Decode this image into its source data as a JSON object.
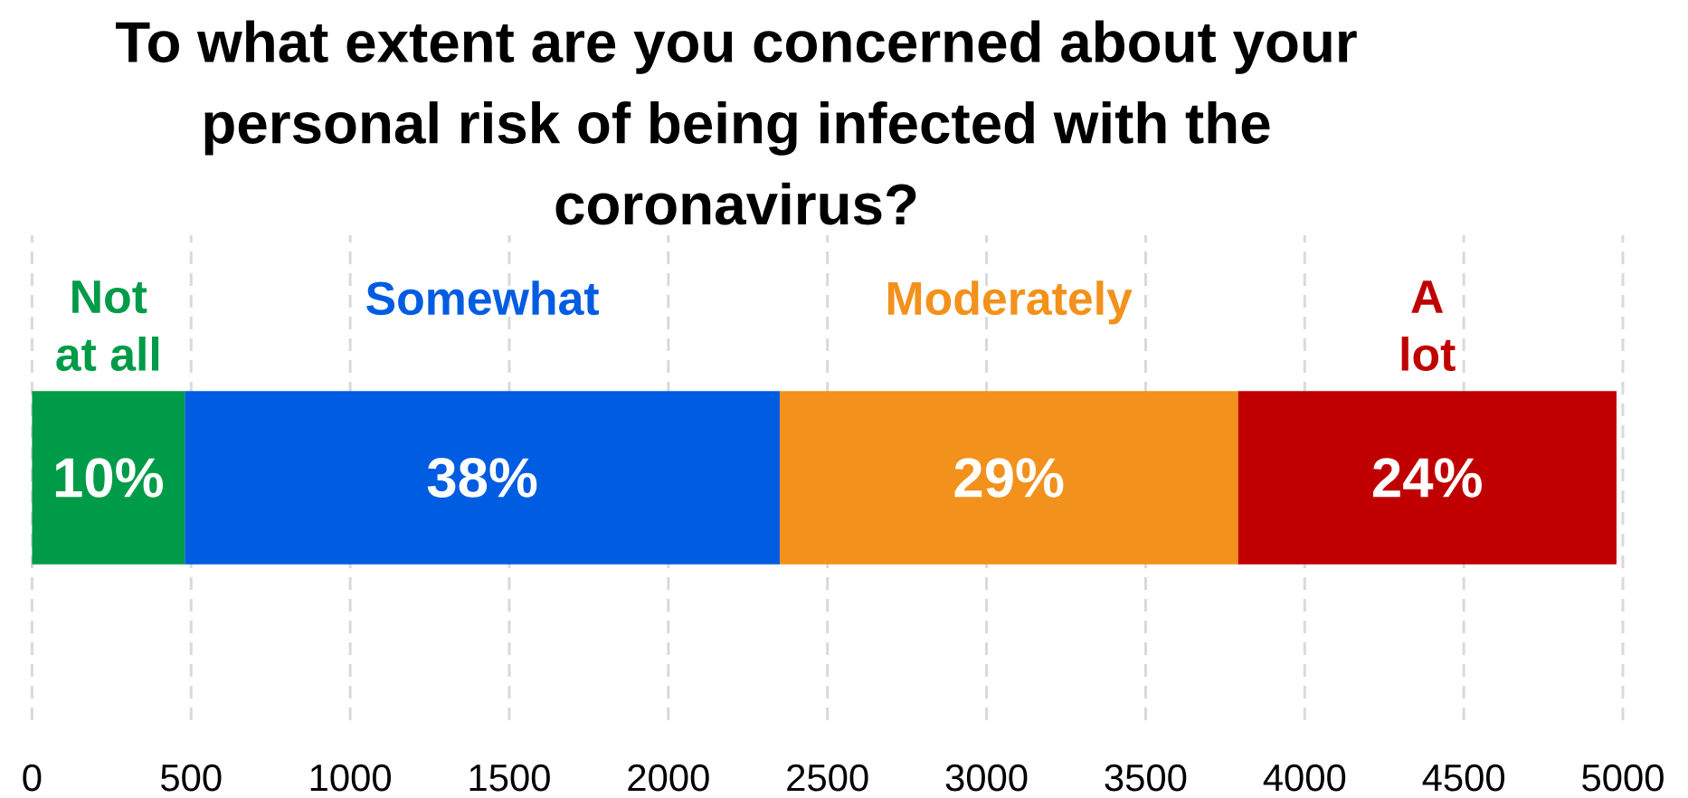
{
  "chart_data": {
    "type": "bar",
    "orientation": "horizontal",
    "stacked": true,
    "title": "To what extent are you concerned about your personal risk of being infected with the coronavirus?",
    "categories": [
      null
    ],
    "series": [
      {
        "name": "Not at all",
        "color": "#009B48",
        "values": [
          480
        ]
      },
      {
        "name": "Somewhat",
        "color": "#005CE1",
        "values": [
          1870
        ]
      },
      {
        "name": "Moderately",
        "color": "#F2911B",
        "values": [
          1440
        ]
      },
      {
        "name": "A lot",
        "color": "#C00000",
        "values": [
          1190
        ]
      }
    ],
    "annotations": [
      "10%",
      "38%",
      "29%",
      "24%"
    ],
    "xlim": [
      0,
      5000
    ],
    "xticks": [
      0,
      500,
      1000,
      1500,
      2000,
      2500,
      3000,
      3500,
      4000,
      4500,
      5000
    ],
    "grid": "x",
    "tick_labels": "x"
  }
}
